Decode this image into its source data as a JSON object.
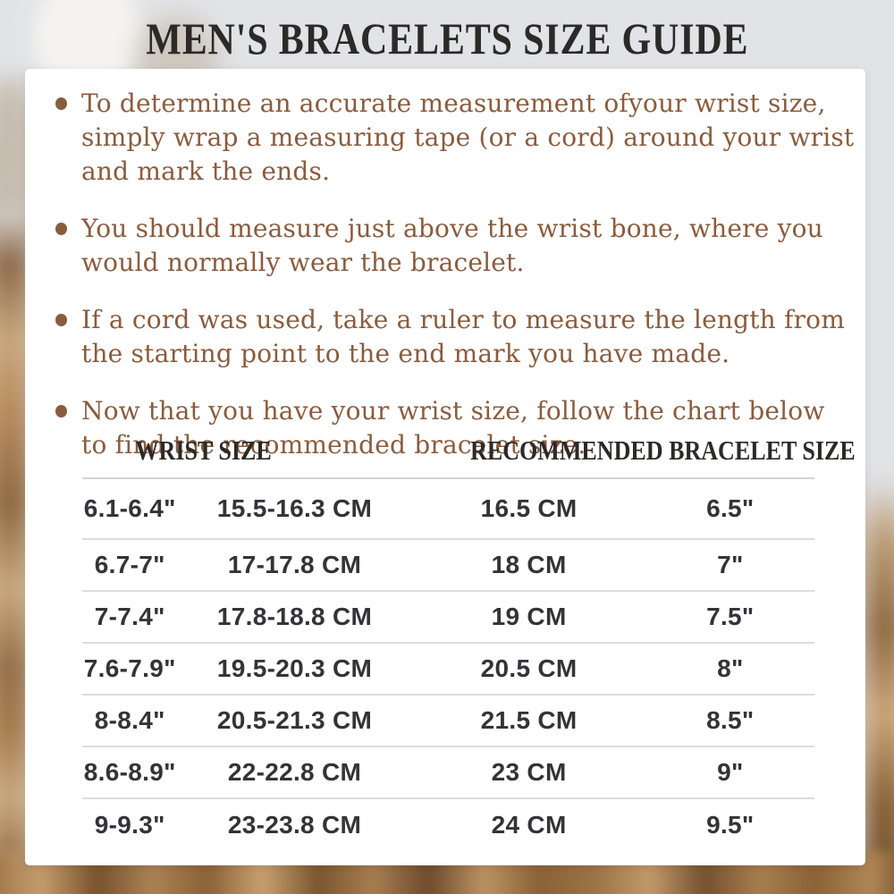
{
  "title": "MEN'S BRACELETS SIZE GUIDE",
  "instructions": [
    {
      "lines": [
        "To determine an accurate measurement ofyour wrist size,",
        "simply wrap a measuring tape (or a cord) around your wrist",
        "and mark the ends."
      ]
    },
    {
      "lines": [
        "You should measure just above the wrist bone, where you",
        "would normally wear the bracelet."
      ]
    },
    {
      "lines": [
        "If a cord was used, take a ruler to measure the length from",
        "the starting point to the end mark you have made."
      ]
    },
    {
      "lines": [
        "Now that you have your wrist size, follow the chart below",
        "to find the recommended bracelet size."
      ]
    }
  ],
  "table": {
    "headers": [
      "WRIST SIZE",
      "RECOMMENDED BRACELET SIZE"
    ],
    "rows": [
      [
        "6.1-6.4\"",
        "15.5-16.3 CM",
        "16.5 CM",
        "6.5\""
      ],
      [
        "6.7-7\"",
        "17-17.8 CM",
        "18 CM",
        "7\""
      ],
      [
        "7-7.4\"",
        "17.8-18.8 CM",
        "19 CM",
        "7.5\""
      ],
      [
        "7.6-7.9\"",
        "19.5-20.3 CM",
        "20.5 CM",
        "8\""
      ],
      [
        "8-8.4\"",
        "20.5-21.3 CM",
        "21.5 CM",
        "8.5\""
      ],
      [
        "8.6-8.9\"",
        "22-22.8 CM",
        "23 CM",
        "9\""
      ],
      [
        "9-9.3\"",
        "23-23.8 CM",
        "24 CM",
        "9.5\""
      ]
    ]
  },
  "colors": {
    "accent_brown": "#8a5c3e",
    "heading_text": "#2b2a28",
    "table_text": "#333338",
    "divider": "#d7d7d7",
    "card_background": "#ffffff",
    "page_background_top": "#e2e3e6",
    "photo_brown": "#8a6237"
  }
}
